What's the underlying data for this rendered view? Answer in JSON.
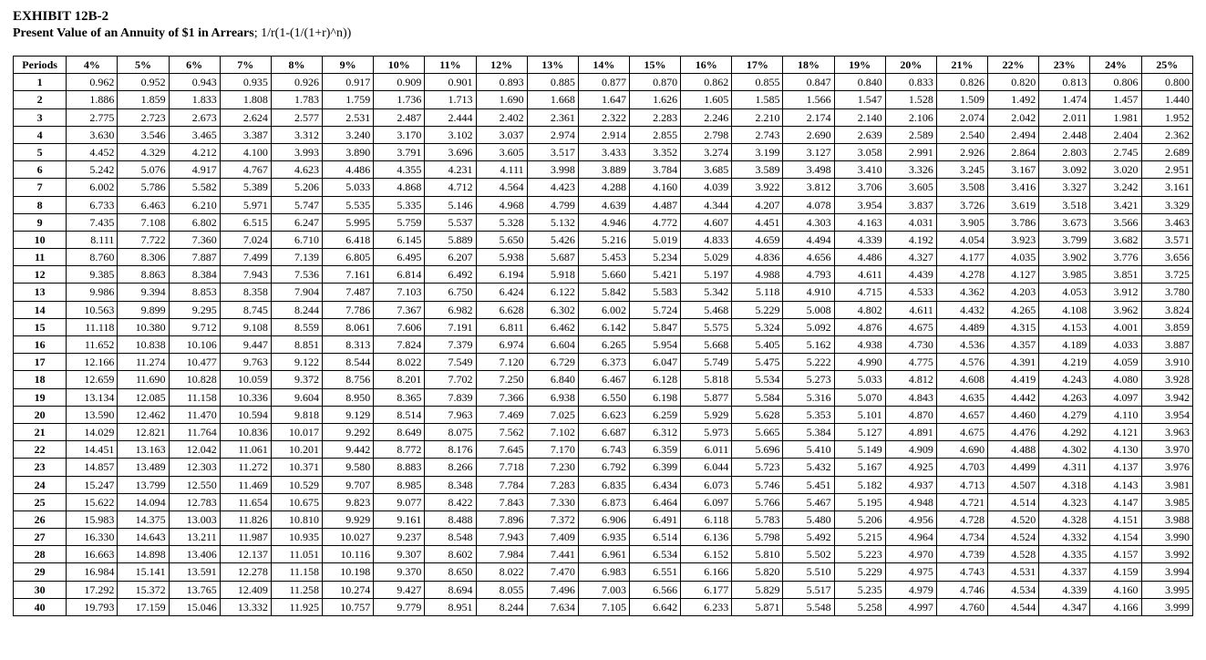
{
  "exhibit": {
    "title": "EXHIBIT 12B-2",
    "subtitle_bold": "Present Value of an Annuity of $1 in Arrears",
    "subtitle_rest": "; 1/r(1-(1/(1+r)^n))"
  },
  "table": {
    "periods_header": "Periods",
    "rate_labels": [
      "4%",
      "5%",
      "6%",
      "7%",
      "8%",
      "9%",
      "10%",
      "11%",
      "12%",
      "13%",
      "14%",
      "15%",
      "16%",
      "17%",
      "18%",
      "19%",
      "20%",
      "21%",
      "22%",
      "23%",
      "24%",
      "25%"
    ],
    "periods": [
      1,
      2,
      3,
      4,
      5,
      6,
      7,
      8,
      9,
      10,
      11,
      12,
      13,
      14,
      15,
      16,
      17,
      18,
      19,
      20,
      21,
      22,
      23,
      24,
      25,
      26,
      27,
      28,
      29,
      30,
      40
    ],
    "rows": [
      [
        "0.962",
        "0.952",
        "0.943",
        "0.935",
        "0.926",
        "0.917",
        "0.909",
        "0.901",
        "0.893",
        "0.885",
        "0.877",
        "0.870",
        "0.862",
        "0.855",
        "0.847",
        "0.840",
        "0.833",
        "0.826",
        "0.820",
        "0.813",
        "0.806",
        "0.800"
      ],
      [
        "1.886",
        "1.859",
        "1.833",
        "1.808",
        "1.783",
        "1.759",
        "1.736",
        "1.713",
        "1.690",
        "1.668",
        "1.647",
        "1.626",
        "1.605",
        "1.585",
        "1.566",
        "1.547",
        "1.528",
        "1.509",
        "1.492",
        "1.474",
        "1.457",
        "1.440"
      ],
      [
        "2.775",
        "2.723",
        "2.673",
        "2.624",
        "2.577",
        "2.531",
        "2.487",
        "2.444",
        "2.402",
        "2.361",
        "2.322",
        "2.283",
        "2.246",
        "2.210",
        "2.174",
        "2.140",
        "2.106",
        "2.074",
        "2.042",
        "2.011",
        "1.981",
        "1.952"
      ],
      [
        "3.630",
        "3.546",
        "3.465",
        "3.387",
        "3.312",
        "3.240",
        "3.170",
        "3.102",
        "3.037",
        "2.974",
        "2.914",
        "2.855",
        "2.798",
        "2.743",
        "2.690",
        "2.639",
        "2.589",
        "2.540",
        "2.494",
        "2.448",
        "2.404",
        "2.362"
      ],
      [
        "4.452",
        "4.329",
        "4.212",
        "4.100",
        "3.993",
        "3.890",
        "3.791",
        "3.696",
        "3.605",
        "3.517",
        "3.433",
        "3.352",
        "3.274",
        "3.199",
        "3.127",
        "3.058",
        "2.991",
        "2.926",
        "2.864",
        "2.803",
        "2.745",
        "2.689"
      ],
      [
        "5.242",
        "5.076",
        "4.917",
        "4.767",
        "4.623",
        "4.486",
        "4.355",
        "4.231",
        "4.111",
        "3.998",
        "3.889",
        "3.784",
        "3.685",
        "3.589",
        "3.498",
        "3.410",
        "3.326",
        "3.245",
        "3.167",
        "3.092",
        "3.020",
        "2.951"
      ],
      [
        "6.002",
        "5.786",
        "5.582",
        "5.389",
        "5.206",
        "5.033",
        "4.868",
        "4.712",
        "4.564",
        "4.423",
        "4.288",
        "4.160",
        "4.039",
        "3.922",
        "3.812",
        "3.706",
        "3.605",
        "3.508",
        "3.416",
        "3.327",
        "3.242",
        "3.161"
      ],
      [
        "6.733",
        "6.463",
        "6.210",
        "5.971",
        "5.747",
        "5.535",
        "5.335",
        "5.146",
        "4.968",
        "4.799",
        "4.639",
        "4.487",
        "4.344",
        "4.207",
        "4.078",
        "3.954",
        "3.837",
        "3.726",
        "3.619",
        "3.518",
        "3.421",
        "3.329"
      ],
      [
        "7.435",
        "7.108",
        "6.802",
        "6.515",
        "6.247",
        "5.995",
        "5.759",
        "5.537",
        "5.328",
        "5.132",
        "4.946",
        "4.772",
        "4.607",
        "4.451",
        "4.303",
        "4.163",
        "4.031",
        "3.905",
        "3.786",
        "3.673",
        "3.566",
        "3.463"
      ],
      [
        "8.111",
        "7.722",
        "7.360",
        "7.024",
        "6.710",
        "6.418",
        "6.145",
        "5.889",
        "5.650",
        "5.426",
        "5.216",
        "5.019",
        "4.833",
        "4.659",
        "4.494",
        "4.339",
        "4.192",
        "4.054",
        "3.923",
        "3.799",
        "3.682",
        "3.571"
      ],
      [
        "8.760",
        "8.306",
        "7.887",
        "7.499",
        "7.139",
        "6.805",
        "6.495",
        "6.207",
        "5.938",
        "5.687",
        "5.453",
        "5.234",
        "5.029",
        "4.836",
        "4.656",
        "4.486",
        "4.327",
        "4.177",
        "4.035",
        "3.902",
        "3.776",
        "3.656"
      ],
      [
        "9.385",
        "8.863",
        "8.384",
        "7.943",
        "7.536",
        "7.161",
        "6.814",
        "6.492",
        "6.194",
        "5.918",
        "5.660",
        "5.421",
        "5.197",
        "4.988",
        "4.793",
        "4.611",
        "4.439",
        "4.278",
        "4.127",
        "3.985",
        "3.851",
        "3.725"
      ],
      [
        "9.986",
        "9.394",
        "8.853",
        "8.358",
        "7.904",
        "7.487",
        "7.103",
        "6.750",
        "6.424",
        "6.122",
        "5.842",
        "5.583",
        "5.342",
        "5.118",
        "4.910",
        "4.715",
        "4.533",
        "4.362",
        "4.203",
        "4.053",
        "3.912",
        "3.780"
      ],
      [
        "10.563",
        "9.899",
        "9.295",
        "8.745",
        "8.244",
        "7.786",
        "7.367",
        "6.982",
        "6.628",
        "6.302",
        "6.002",
        "5.724",
        "5.468",
        "5.229",
        "5.008",
        "4.802",
        "4.611",
        "4.432",
        "4.265",
        "4.108",
        "3.962",
        "3.824"
      ],
      [
        "11.118",
        "10.380",
        "9.712",
        "9.108",
        "8.559",
        "8.061",
        "7.606",
        "7.191",
        "6.811",
        "6.462",
        "6.142",
        "5.847",
        "5.575",
        "5.324",
        "5.092",
        "4.876",
        "4.675",
        "4.489",
        "4.315",
        "4.153",
        "4.001",
        "3.859"
      ],
      [
        "11.652",
        "10.838",
        "10.106",
        "9.447",
        "8.851",
        "8.313",
        "7.824",
        "7.379",
        "6.974",
        "6.604",
        "6.265",
        "5.954",
        "5.668",
        "5.405",
        "5.162",
        "4.938",
        "4.730",
        "4.536",
        "4.357",
        "4.189",
        "4.033",
        "3.887"
      ],
      [
        "12.166",
        "11.274",
        "10.477",
        "9.763",
        "9.122",
        "8.544",
        "8.022",
        "7.549",
        "7.120",
        "6.729",
        "6.373",
        "6.047",
        "5.749",
        "5.475",
        "5.222",
        "4.990",
        "4.775",
        "4.576",
        "4.391",
        "4.219",
        "4.059",
        "3.910"
      ],
      [
        "12.659",
        "11.690",
        "10.828",
        "10.059",
        "9.372",
        "8.756",
        "8.201",
        "7.702",
        "7.250",
        "6.840",
        "6.467",
        "6.128",
        "5.818",
        "5.534",
        "5.273",
        "5.033",
        "4.812",
        "4.608",
        "4.419",
        "4.243",
        "4.080",
        "3.928"
      ],
      [
        "13.134",
        "12.085",
        "11.158",
        "10.336",
        "9.604",
        "8.950",
        "8.365",
        "7.839",
        "7.366",
        "6.938",
        "6.550",
        "6.198",
        "5.877",
        "5.584",
        "5.316",
        "5.070",
        "4.843",
        "4.635",
        "4.442",
        "4.263",
        "4.097",
        "3.942"
      ],
      [
        "13.590",
        "12.462",
        "11.470",
        "10.594",
        "9.818",
        "9.129",
        "8.514",
        "7.963",
        "7.469",
        "7.025",
        "6.623",
        "6.259",
        "5.929",
        "5.628",
        "5.353",
        "5.101",
        "4.870",
        "4.657",
        "4.460",
        "4.279",
        "4.110",
        "3.954"
      ],
      [
        "14.029",
        "12.821",
        "11.764",
        "10.836",
        "10.017",
        "9.292",
        "8.649",
        "8.075",
        "7.562",
        "7.102",
        "6.687",
        "6.312",
        "5.973",
        "5.665",
        "5.384",
        "5.127",
        "4.891",
        "4.675",
        "4.476",
        "4.292",
        "4.121",
        "3.963"
      ],
      [
        "14.451",
        "13.163",
        "12.042",
        "11.061",
        "10.201",
        "9.442",
        "8.772",
        "8.176",
        "7.645",
        "7.170",
        "6.743",
        "6.359",
        "6.011",
        "5.696",
        "5.410",
        "5.149",
        "4.909",
        "4.690",
        "4.488",
        "4.302",
        "4.130",
        "3.970"
      ],
      [
        "14.857",
        "13.489",
        "12.303",
        "11.272",
        "10.371",
        "9.580",
        "8.883",
        "8.266",
        "7.718",
        "7.230",
        "6.792",
        "6.399",
        "6.044",
        "5.723",
        "5.432",
        "5.167",
        "4.925",
        "4.703",
        "4.499",
        "4.311",
        "4.137",
        "3.976"
      ],
      [
        "15.247",
        "13.799",
        "12.550",
        "11.469",
        "10.529",
        "9.707",
        "8.985",
        "8.348",
        "7.784",
        "7.283",
        "6.835",
        "6.434",
        "6.073",
        "5.746",
        "5.451",
        "5.182",
        "4.937",
        "4.713",
        "4.507",
        "4.318",
        "4.143",
        "3.981"
      ],
      [
        "15.622",
        "14.094",
        "12.783",
        "11.654",
        "10.675",
        "9.823",
        "9.077",
        "8.422",
        "7.843",
        "7.330",
        "6.873",
        "6.464",
        "6.097",
        "5.766",
        "5.467",
        "5.195",
        "4.948",
        "4.721",
        "4.514",
        "4.323",
        "4.147",
        "3.985"
      ],
      [
        "15.983",
        "14.375",
        "13.003",
        "11.826",
        "10.810",
        "9.929",
        "9.161",
        "8.488",
        "7.896",
        "7.372",
        "6.906",
        "6.491",
        "6.118",
        "5.783",
        "5.480",
        "5.206",
        "4.956",
        "4.728",
        "4.520",
        "4.328",
        "4.151",
        "3.988"
      ],
      [
        "16.330",
        "14.643",
        "13.211",
        "11.987",
        "10.935",
        "10.027",
        "9.237",
        "8.548",
        "7.943",
        "7.409",
        "6.935",
        "6.514",
        "6.136",
        "5.798",
        "5.492",
        "5.215",
        "4.964",
        "4.734",
        "4.524",
        "4.332",
        "4.154",
        "3.990"
      ],
      [
        "16.663",
        "14.898",
        "13.406",
        "12.137",
        "11.051",
        "10.116",
        "9.307",
        "8.602",
        "7.984",
        "7.441",
        "6.961",
        "6.534",
        "6.152",
        "5.810",
        "5.502",
        "5.223",
        "4.970",
        "4.739",
        "4.528",
        "4.335",
        "4.157",
        "3.992"
      ],
      [
        "16.984",
        "15.141",
        "13.591",
        "12.278",
        "11.158",
        "10.198",
        "9.370",
        "8.650",
        "8.022",
        "7.470",
        "6.983",
        "6.551",
        "6.166",
        "5.820",
        "5.510",
        "5.229",
        "4.975",
        "4.743",
        "4.531",
        "4.337",
        "4.159",
        "3.994"
      ],
      [
        "17.292",
        "15.372",
        "13.765",
        "12.409",
        "11.258",
        "10.274",
        "9.427",
        "8.694",
        "8.055",
        "7.496",
        "7.003",
        "6.566",
        "6.177",
        "5.829",
        "5.517",
        "5.235",
        "4.979",
        "4.746",
        "4.534",
        "4.339",
        "4.160",
        "3.995"
      ],
      [
        "19.793",
        "17.159",
        "15.046",
        "13.332",
        "11.925",
        "10.757",
        "9.779",
        "8.951",
        "8.244",
        "7.634",
        "7.105",
        "6.642",
        "6.233",
        "5.871",
        "5.548",
        "5.258",
        "4.997",
        "4.760",
        "4.544",
        "4.347",
        "4.166",
        "3.999"
      ]
    ]
  },
  "style": {
    "font_family": "Times New Roman",
    "header_fontsize_pt": 15,
    "sub_fontsize_pt": 14,
    "table_fontsize_pt": 12,
    "border_color": "#000000",
    "background_color": "#ffffff",
    "text_color": "#000000"
  }
}
